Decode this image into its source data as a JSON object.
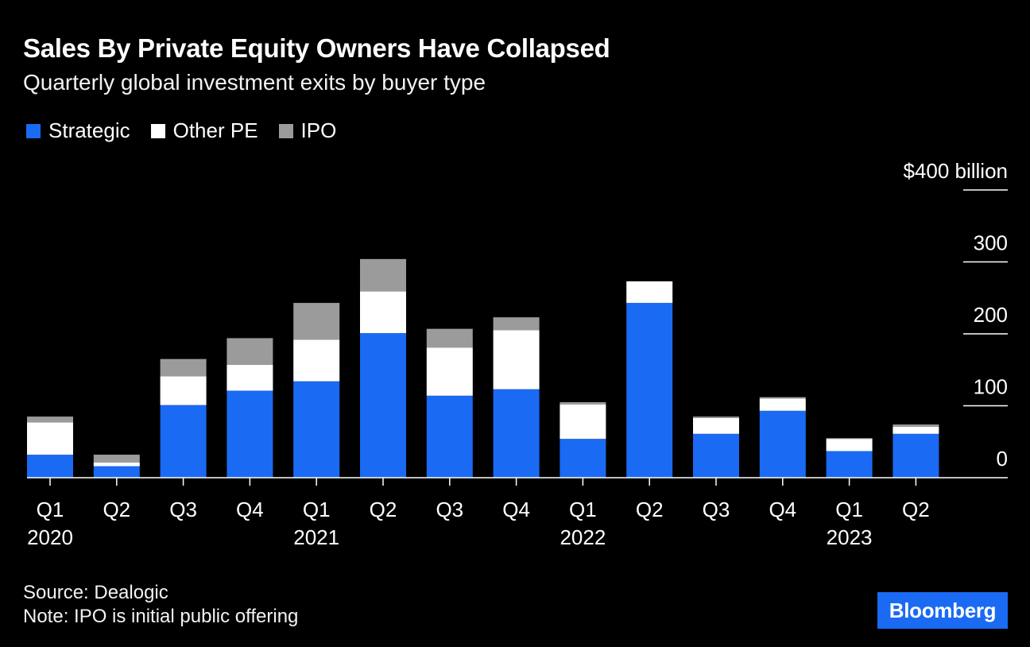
{
  "header": {
    "title": "Sales By Private Equity Owners Have Collapsed",
    "subtitle": "Quarterly global investment exits by buyer type"
  },
  "legend": [
    {
      "label": "Strategic",
      "color": "#1a6af3"
    },
    {
      "label": "Other PE",
      "color": "#ffffff"
    },
    {
      "label": "IPO",
      "color": "#9b9b9b"
    }
  ],
  "footer": {
    "source": "Source: Dealogic",
    "note": "Note: IPO is initial public offering"
  },
  "logo": "Bloomberg",
  "chart_data": {
    "type": "bar",
    "stacked": true,
    "categories": [
      "Q1 2020",
      "Q2 2020",
      "Q3 2020",
      "Q4 2020",
      "Q1 2021",
      "Q2 2021",
      "Q3 2021",
      "Q4 2021",
      "Q1 2022",
      "Q2 2022",
      "Q3 2022",
      "Q4 2022",
      "Q1 2023",
      "Q2 2023"
    ],
    "tick_labels": [
      {
        "quarter": "Q1",
        "year": "2020"
      },
      {
        "quarter": "Q2",
        "year": ""
      },
      {
        "quarter": "Q3",
        "year": ""
      },
      {
        "quarter": "Q4",
        "year": ""
      },
      {
        "quarter": "Q1",
        "year": "2021"
      },
      {
        "quarter": "Q2",
        "year": ""
      },
      {
        "quarter": "Q3",
        "year": ""
      },
      {
        "quarter": "Q4",
        "year": ""
      },
      {
        "quarter": "Q1",
        "year": "2022"
      },
      {
        "quarter": "Q2",
        "year": ""
      },
      {
        "quarter": "Q3",
        "year": ""
      },
      {
        "quarter": "Q4",
        "year": ""
      },
      {
        "quarter": "Q1",
        "year": "2023"
      },
      {
        "quarter": "Q2",
        "year": ""
      }
    ],
    "series": [
      {
        "name": "Strategic",
        "color": "#1a6af3",
        "values": [
          32,
          16,
          101,
          121,
          134,
          201,
          114,
          123,
          54,
          243,
          61,
          93,
          37,
          61
        ]
      },
      {
        "name": "Other PE",
        "color": "#ffffff",
        "values": [
          45,
          5,
          40,
          36,
          58,
          58,
          67,
          82,
          48,
          30,
          22,
          17,
          17,
          10
        ]
      },
      {
        "name": "IPO",
        "color": "#9b9b9b",
        "values": [
          8,
          11,
          24,
          37,
          51,
          45,
          26,
          18,
          3,
          0,
          2,
          2,
          1,
          3
        ]
      }
    ],
    "y_ticks": [
      "$400 billion",
      "300",
      "200",
      "100",
      "0"
    ],
    "y_tick_values": [
      400,
      300,
      200,
      100,
      0
    ],
    "ylim": [
      0,
      400
    ],
    "grid": false,
    "legend_position": "top-left",
    "xlabel": "",
    "ylabel": ""
  }
}
